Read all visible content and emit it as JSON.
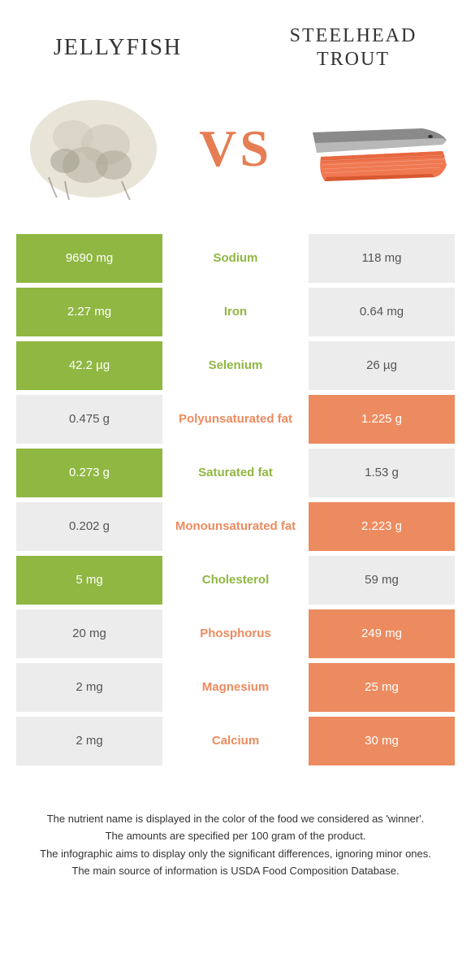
{
  "colors": {
    "left": "#8fb742",
    "right": "#ec8b5f",
    "vs": "#e67d53",
    "title": "#333333",
    "footer_text": "#333333",
    "neutral_bg": "#ececec",
    "neutral_text": "#555555"
  },
  "header": {
    "left_title": "Jellyfish",
    "right_title": "Steelhead trout",
    "vs_label": "VS"
  },
  "rows": [
    {
      "nutrient": "Sodium",
      "left": "9690 mg",
      "right": "118 mg",
      "winner": "left"
    },
    {
      "nutrient": "Iron",
      "left": "2.27 mg",
      "right": "0.64 mg",
      "winner": "left"
    },
    {
      "nutrient": "Selenium",
      "left": "42.2 µg",
      "right": "26 µg",
      "winner": "left"
    },
    {
      "nutrient": "Polyunsaturated fat",
      "left": "0.475 g",
      "right": "1.225 g",
      "winner": "right"
    },
    {
      "nutrient": "Saturated fat",
      "left": "0.273 g",
      "right": "1.53 g",
      "winner": "left"
    },
    {
      "nutrient": "Monounsaturated fat",
      "left": "0.202 g",
      "right": "2.223 g",
      "winner": "right"
    },
    {
      "nutrient": "Cholesterol",
      "left": "5 mg",
      "right": "59 mg",
      "winner": "left"
    },
    {
      "nutrient": "Phosphorus",
      "left": "20 mg",
      "right": "249 mg",
      "winner": "right"
    },
    {
      "nutrient": "Magnesium",
      "left": "2 mg",
      "right": "25 mg",
      "winner": "right"
    },
    {
      "nutrient": "Calcium",
      "left": "2 mg",
      "right": "30 mg",
      "winner": "right"
    }
  ],
  "footer": {
    "line1": "The nutrient name is displayed in the color of the food we considered as 'winner'.",
    "line2": "The amounts are specified per 100 gram of the product.",
    "line3": "The infographic aims to display only the significant differences, ignoring minor ones.",
    "line4": "The main source of information is USDA Food Composition Database."
  }
}
